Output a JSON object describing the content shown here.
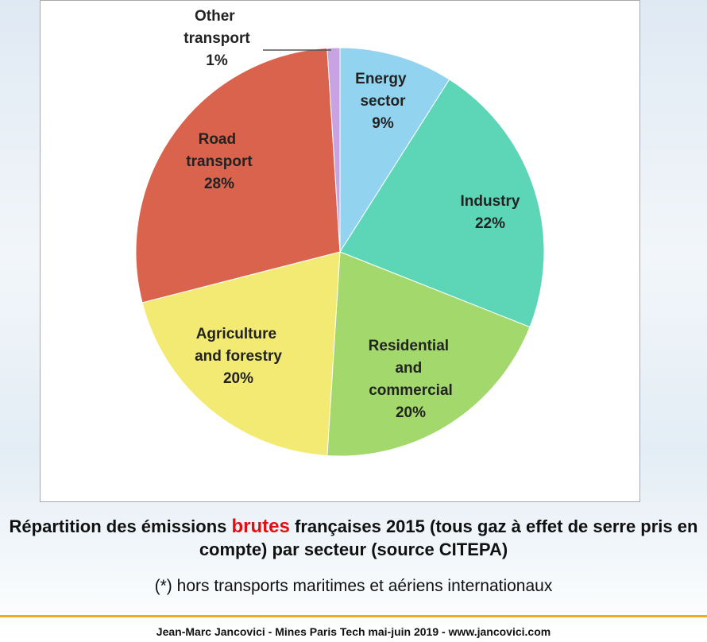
{
  "chart_data": {
    "type": "pie",
    "categories": [
      "Energy sector",
      "Industry",
      "Residential and commercial",
      "Agriculture and forestry",
      "Road transport",
      "Other transport"
    ],
    "values": [
      9,
      22,
      20,
      20,
      28,
      1
    ],
    "value_labels": [
      "9%",
      "22%",
      "20%",
      "20%",
      "28%",
      "1%"
    ],
    "colors": [
      "#92d4f0",
      "#5cd6b6",
      "#a2d86c",
      "#f2ea72",
      "#d9634c",
      "#c9a2e2"
    ]
  },
  "caption": {
    "before": "Répartition des émissions ",
    "highlight": "brutes",
    "after": " françaises 2015 (tous gaz à effet de serre pris en compte) par secteur (source CITEPA)"
  },
  "note": "(*) hors transports maritimes et aériens internationaux",
  "footer": "Jean-Marc Jancovici - Mines Paris Tech mai-juin 2019 - www.jancovici.com"
}
